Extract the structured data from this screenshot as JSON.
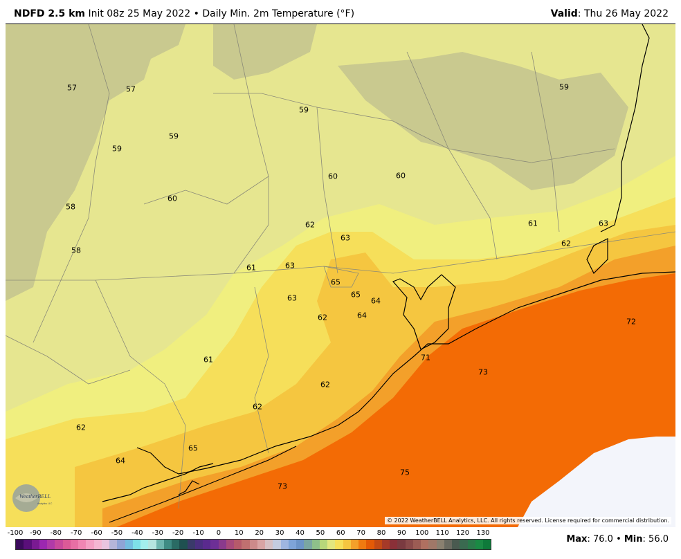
{
  "header": {
    "model": "NDFD 2.5 km",
    "init": "Init 08z 25 May 2022",
    "bullet": "•",
    "product": "Daily Min. 2m Temperature (°F)",
    "valid_label": "Valid",
    "valid_value": ": Thu 26 May 2022"
  },
  "map_labels": [
    {
      "text": "57"
    },
    {
      "text": "57"
    },
    {
      "text": "59"
    },
    {
      "text": "59"
    },
    {
      "text": "59"
    },
    {
      "text": "59"
    },
    {
      "text": "60"
    },
    {
      "text": "60"
    },
    {
      "text": "58"
    },
    {
      "text": "60"
    },
    {
      "text": "58"
    },
    {
      "text": "62"
    },
    {
      "text": "63"
    },
    {
      "text": "61"
    },
    {
      "text": "63"
    },
    {
      "text": "61"
    },
    {
      "text": "62"
    },
    {
      "text": "63"
    },
    {
      "text": "65"
    },
    {
      "text": "65"
    },
    {
      "text": "64"
    },
    {
      "text": "63"
    },
    {
      "text": "62"
    },
    {
      "text": "64"
    },
    {
      "text": "72"
    },
    {
      "text": "71"
    },
    {
      "text": "61"
    },
    {
      "text": "73"
    },
    {
      "text": "62"
    },
    {
      "text": "62"
    },
    {
      "text": "62"
    },
    {
      "text": "65"
    },
    {
      "text": "64"
    },
    {
      "text": "75"
    },
    {
      "text": "73"
    }
  ],
  "colors": {
    "cool": "#c9c98f",
    "mild": "#e6e690",
    "light_yellow": "#f0ef7f",
    "yellow": "#f6df5a",
    "gold": "#f5c640",
    "orange": "#f3a02a",
    "deep_orange": "#f36b05",
    "missing": "#f3f5fb"
  },
  "logo": {
    "name": "WeatherBELL",
    "sub": "Analytics LLC"
  },
  "copyright": "© 2022 WeatherBELL Analytics, LLC. All rights reserved. License required for commercial distribution.",
  "legend": {
    "ticks": [
      "-100",
      "-90",
      "-80",
      "-70",
      "-60",
      "-50",
      "-40",
      "-30",
      "-20",
      "-10",
      "0",
      "10",
      "20",
      "30",
      "40",
      "50",
      "60",
      "70",
      "80",
      "90",
      "100",
      "110",
      "120",
      "130"
    ],
    "colors": [
      "#3b0a5c",
      "#5a0f7a",
      "#7a1a92",
      "#9c27b0",
      "#b13aa8",
      "#c9499b",
      "#dc5a97",
      "#e76fa4",
      "#ef86b3",
      "#f3a0c4",
      "#f3b6d2",
      "#e8c4e0",
      "#b5b5d9",
      "#8fa4d6",
      "#74bde0",
      "#7ee0e8",
      "#a3f0ee",
      "#b6e6e0",
      "#6fb7b0",
      "#3f8c84",
      "#2a6b64",
      "#1f5050",
      "#3a3a6a",
      "#4b2f80",
      "#5a2a8e",
      "#6d2f96",
      "#8a3a8c",
      "#a84a7a",
      "#b65a6a",
      "#c07070",
      "#cc8a8a",
      "#d8a4a4",
      "#d6c0c4",
      "#c4cce0",
      "#9fb6e0",
      "#7ea4d8",
      "#6c94c8",
      "#7aa6a2",
      "#8ec08a",
      "#b7d77a",
      "#e2e67f",
      "#f6df5a",
      "#f5c640",
      "#f3a02a",
      "#f07a10",
      "#e45a06",
      "#c44a14",
      "#a63a28",
      "#8a3038",
      "#7a3a40",
      "#8a4a4a",
      "#9c5c54",
      "#b07060",
      "#a07868",
      "#8a8070",
      "#6a6a60",
      "#4a5a50",
      "#3a6a50",
      "#2a7a4a",
      "#1a8a44",
      "#0e7a3a"
    ],
    "max_label": "Max",
    "max_value": ": 76.0",
    "bullet": "•",
    "min_label": "Min",
    "min_value": ": 56.0"
  }
}
